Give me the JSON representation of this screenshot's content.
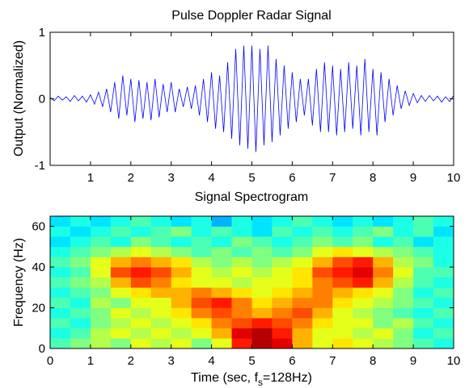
{
  "chart_data": [
    {
      "type": "line",
      "title": "Pulse Doppler Radar Signal",
      "ylabel": "Output (Normalized)",
      "color": "#0000ff",
      "x": [
        0,
        0.1,
        0.2,
        0.3,
        0.4,
        0.5,
        0.6,
        0.7,
        0.8,
        0.9,
        1,
        1.1,
        1.2,
        1.3,
        1.4,
        1.5,
        1.6,
        1.7,
        1.8,
        1.9,
        2,
        2.1,
        2.2,
        2.3,
        2.4,
        2.5,
        2.6,
        2.7,
        2.8,
        2.9,
        3,
        3.1,
        3.2,
        3.3,
        3.4,
        3.5,
        3.6,
        3.7,
        3.8,
        3.9,
        4,
        4.1,
        4.2,
        4.3,
        4.4,
        4.5,
        4.6,
        4.7,
        4.8,
        4.9,
        5,
        5.1,
        5.2,
        5.3,
        5.4,
        5.5,
        5.6,
        5.7,
        5.8,
        5.9,
        6,
        6.1,
        6.2,
        6.3,
        6.4,
        6.5,
        6.6,
        6.7,
        6.8,
        6.9,
        7,
        7.1,
        7.2,
        7.3,
        7.4,
        7.5,
        7.6,
        7.7,
        7.8,
        7.9,
        8,
        8.1,
        8.2,
        8.3,
        8.4,
        8.5,
        8.6,
        8.7,
        8.8,
        8.9,
        9,
        9.1,
        9.2,
        9.3,
        9.4,
        9.5,
        9.6,
        9.7,
        9.8,
        9.9,
        10
      ],
      "values": [
        0.02,
        -0.03,
        0.04,
        -0.02,
        0.03,
        -0.04,
        0.05,
        -0.03,
        0.04,
        -0.05,
        0.06,
        -0.08,
        0.1,
        -0.12,
        0.15,
        -0.2,
        0.25,
        -0.3,
        0.35,
        -0.25,
        0.3,
        -0.35,
        0.28,
        -0.3,
        0.25,
        -0.32,
        0.3,
        -0.28,
        0.22,
        -0.2,
        0.25,
        -0.2,
        0.15,
        -0.12,
        0.18,
        -0.15,
        0.2,
        -0.25,
        0.3,
        -0.35,
        0.4,
        -0.45,
        0.35,
        -0.5,
        0.55,
        -0.6,
        0.75,
        -0.7,
        0.8,
        -0.75,
        0.8,
        -0.8,
        0.75,
        -0.7,
        0.8,
        -0.65,
        0.6,
        -0.55,
        0.5,
        -0.45,
        0.4,
        -0.35,
        0.3,
        -0.25,
        0.3,
        -0.4,
        0.45,
        -0.5,
        0.55,
        -0.5,
        0.5,
        -0.55,
        0.45,
        -0.5,
        0.55,
        -0.45,
        0.5,
        -0.55,
        0.6,
        -0.5,
        0.45,
        -0.55,
        0.4,
        -0.35,
        0.3,
        -0.25,
        0.2,
        -0.15,
        0.12,
        -0.1,
        0.08,
        -0.06,
        0.05,
        -0.04,
        0.05,
        -0.03,
        0.04,
        -0.05,
        0.03,
        -0.04,
        0.05
      ],
      "xlim": [
        0,
        10
      ],
      "ylim": [
        -1,
        1
      ],
      "xticks": [
        1,
        2,
        3,
        4,
        5,
        6,
        7,
        8,
        9,
        10
      ],
      "yticks": [
        -1,
        0,
        1
      ]
    },
    {
      "type": "heatmap",
      "title": "Signal Spectrogram",
      "ylabel": "Frequency (Hz)",
      "xlabel_parts": [
        "Time (sec, f",
        "s",
        "=128Hz)"
      ],
      "colormap": "jet",
      "xbins": [
        0,
        0.5,
        1,
        1.5,
        2,
        2.5,
        3,
        3.5,
        4,
        4.5,
        5,
        5.5,
        6,
        6.5,
        7,
        7.5,
        8,
        8.5,
        9,
        9.5,
        10
      ],
      "ybins": [
        0,
        5,
        10,
        15,
        20,
        25,
        30,
        35,
        40,
        45,
        50,
        55,
        60,
        65
      ],
      "z": [
        [
          0.45,
          0.5,
          0.55,
          0.5,
          0.6,
          0.55,
          0.6,
          0.5,
          0.6,
          0.85,
          0.95,
          0.9,
          0.7,
          0.6,
          0.65,
          0.6,
          0.55,
          0.5,
          0.45,
          0.4
        ],
        [
          0.4,
          0.45,
          0.55,
          0.6,
          0.55,
          0.6,
          0.55,
          0.6,
          0.7,
          0.9,
          0.95,
          0.85,
          0.7,
          0.6,
          0.6,
          0.55,
          0.6,
          0.5,
          0.4,
          0.45
        ],
        [
          0.45,
          0.4,
          0.5,
          0.55,
          0.6,
          0.55,
          0.6,
          0.65,
          0.75,
          0.8,
          0.85,
          0.8,
          0.75,
          0.65,
          0.6,
          0.6,
          0.5,
          0.55,
          0.45,
          0.4
        ],
        [
          0.4,
          0.45,
          0.5,
          0.6,
          0.55,
          0.6,
          0.65,
          0.75,
          0.8,
          0.75,
          0.7,
          0.75,
          0.8,
          0.7,
          0.6,
          0.55,
          0.5,
          0.45,
          0.4,
          0.45
        ],
        [
          0.45,
          0.4,
          0.55,
          0.5,
          0.6,
          0.6,
          0.7,
          0.8,
          0.85,
          0.75,
          0.65,
          0.7,
          0.75,
          0.75,
          0.65,
          0.6,
          0.55,
          0.5,
          0.45,
          0.4
        ],
        [
          0.4,
          0.45,
          0.5,
          0.6,
          0.65,
          0.7,
          0.7,
          0.75,
          0.7,
          0.65,
          0.6,
          0.65,
          0.7,
          0.75,
          0.7,
          0.65,
          0.6,
          0.5,
          0.4,
          0.45
        ],
        [
          0.45,
          0.5,
          0.55,
          0.7,
          0.8,
          0.75,
          0.65,
          0.6,
          0.6,
          0.55,
          0.6,
          0.6,
          0.65,
          0.75,
          0.8,
          0.85,
          0.7,
          0.55,
          0.45,
          0.4
        ],
        [
          0.4,
          0.45,
          0.6,
          0.8,
          0.85,
          0.8,
          0.7,
          0.6,
          0.55,
          0.6,
          0.55,
          0.6,
          0.65,
          0.8,
          0.85,
          0.9,
          0.75,
          0.6,
          0.45,
          0.45
        ],
        [
          0.45,
          0.5,
          0.6,
          0.7,
          0.75,
          0.7,
          0.65,
          0.55,
          0.5,
          0.55,
          0.5,
          0.55,
          0.6,
          0.7,
          0.8,
          0.85,
          0.7,
          0.55,
          0.5,
          0.4
        ],
        [
          0.4,
          0.45,
          0.5,
          0.55,
          0.6,
          0.55,
          0.5,
          0.45,
          0.5,
          0.45,
          0.5,
          0.45,
          0.5,
          0.6,
          0.65,
          0.6,
          0.55,
          0.5,
          0.45,
          0.4
        ],
        [
          0.35,
          0.4,
          0.45,
          0.4,
          0.5,
          0.45,
          0.4,
          0.45,
          0.4,
          0.5,
          0.45,
          0.4,
          0.45,
          0.5,
          0.45,
          0.5,
          0.4,
          0.45,
          0.35,
          0.4
        ],
        [
          0.4,
          0.35,
          0.4,
          0.45,
          0.4,
          0.45,
          0.5,
          0.4,
          0.45,
          0.4,
          0.35,
          0.45,
          0.4,
          0.45,
          0.4,
          0.45,
          0.5,
          0.4,
          0.45,
          0.35
        ],
        [
          0.35,
          0.4,
          0.35,
          0.4,
          0.45,
          0.4,
          0.35,
          0.4,
          0.3,
          0.4,
          0.35,
          0.4,
          0.45,
          0.4,
          0.35,
          0.4,
          0.35,
          0.4,
          0.45,
          0.4
        ]
      ],
      "xlim": [
        0,
        10
      ],
      "ylim": [
        0,
        65
      ],
      "xticks": [
        0,
        1,
        2,
        3,
        4,
        5,
        6,
        7,
        8,
        9,
        10
      ],
      "yticks": [
        0,
        20,
        40,
        60
      ]
    }
  ]
}
